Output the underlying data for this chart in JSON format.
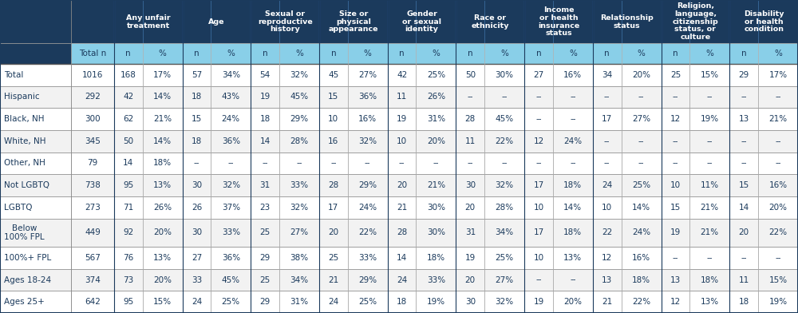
{
  "header_row1_texts": [
    "Any unfair\ntreatment",
    "Age",
    "Sexual or\nreproductive\nhistory",
    "Size or\nphysical\nappearance",
    "Gender\nor sexual\nidentity",
    "Race or\nethnicity",
    "Income\nor health\ninsurance\nstatus",
    "Relationship\nstatus",
    "Religion,\nlanguage,\ncitizenship\nstatus, or\nculture",
    "Disability\nor health\ncondition"
  ],
  "header_row2": [
    "Total n",
    "n",
    "%",
    "n",
    "%",
    "n",
    "%",
    "n",
    "%",
    "n",
    "%",
    "n",
    "%",
    "n",
    "%",
    "n",
    "%",
    "n",
    "%",
    "n",
    "%"
  ],
  "rows": [
    [
      "Total",
      "1016",
      "168",
      "17%",
      "57",
      "34%",
      "54",
      "32%",
      "45",
      "27%",
      "42",
      "25%",
      "50",
      "30%",
      "27",
      "16%",
      "34",
      "20%",
      "25",
      "15%",
      "29",
      "17%"
    ],
    [
      "Hispanic",
      "292",
      "42",
      "14%",
      "18",
      "43%",
      "19",
      "45%",
      "15",
      "36%",
      "11",
      "26%",
      "--",
      "--",
      "--",
      "--",
      "--",
      "--",
      "--",
      "--",
      "--",
      "--"
    ],
    [
      "Black, NH",
      "300",
      "62",
      "21%",
      "15",
      "24%",
      "18",
      "29%",
      "10",
      "16%",
      "19",
      "31%",
      "28",
      "45%",
      "--",
      "--",
      "17",
      "27%",
      "12",
      "19%",
      "13",
      "21%"
    ],
    [
      "White, NH",
      "345",
      "50",
      "14%",
      "18",
      "36%",
      "14",
      "28%",
      "16",
      "32%",
      "10",
      "20%",
      "11",
      "22%",
      "12",
      "24%",
      "--",
      "--",
      "--",
      "--",
      "--",
      "--"
    ],
    [
      "Other, NH",
      "79",
      "14",
      "18%",
      "--",
      "--",
      "--",
      "--",
      "--",
      "--",
      "--",
      "--",
      "--",
      "--",
      "--",
      "--",
      "--",
      "--",
      "--",
      "--",
      "--",
      "--"
    ],
    [
      "Not LGBTQ",
      "738",
      "95",
      "13%",
      "30",
      "32%",
      "31",
      "33%",
      "28",
      "29%",
      "20",
      "21%",
      "30",
      "32%",
      "17",
      "18%",
      "24",
      "25%",
      "10",
      "11%",
      "15",
      "16%"
    ],
    [
      "LGBTQ",
      "273",
      "71",
      "26%",
      "26",
      "37%",
      "23",
      "32%",
      "17",
      "24%",
      "21",
      "30%",
      "20",
      "28%",
      "10",
      "14%",
      "10",
      "14%",
      "15",
      "21%",
      "14",
      "20%"
    ],
    [
      "Below\n100% FPL",
      "449",
      "92",
      "20%",
      "30",
      "33%",
      "25",
      "27%",
      "20",
      "22%",
      "28",
      "30%",
      "31",
      "34%",
      "17",
      "18%",
      "22",
      "24%",
      "19",
      "21%",
      "20",
      "22%"
    ],
    [
      "100%+ FPL",
      "567",
      "76",
      "13%",
      "27",
      "36%",
      "29",
      "38%",
      "25",
      "33%",
      "14",
      "18%",
      "19",
      "25%",
      "10",
      "13%",
      "12",
      "16%",
      "--",
      "--",
      "--",
      "--"
    ],
    [
      "Ages 18-24",
      "374",
      "73",
      "20%",
      "33",
      "45%",
      "25",
      "34%",
      "21",
      "29%",
      "24",
      "33%",
      "20",
      "27%",
      "--",
      "--",
      "13",
      "18%",
      "13",
      "18%",
      "11",
      "15%"
    ],
    [
      "Ages 25+",
      "642",
      "95",
      "15%",
      "24",
      "25%",
      "29",
      "31%",
      "24",
      "25%",
      "18",
      "19%",
      "30",
      "32%",
      "19",
      "20%",
      "21",
      "22%",
      "12",
      "13%",
      "18",
      "19%"
    ]
  ],
  "dark_header_color": "#1b3a5c",
  "light_header_color": "#89cfe8",
  "header_text_color": "#ffffff",
  "subheader_text_color": "#1b3a5c",
  "body_text_color": "#1b3a5c",
  "border_light": "#aaaaaa",
  "border_dark": "#1b3a5c",
  "row_bg_white": "#ffffff",
  "row_bg_gray": "#f2f2f2"
}
